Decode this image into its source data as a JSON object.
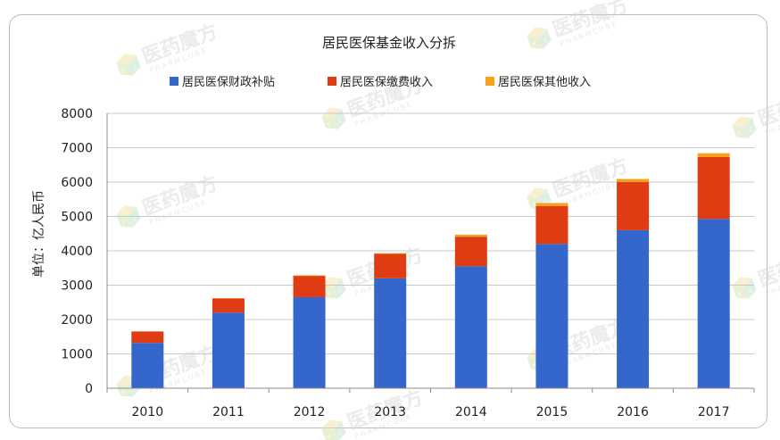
{
  "chart_data": {
    "type": "bar",
    "stacked": true,
    "title": "居民医保基金收入分拆",
    "ylabel": "单位：亿人民币",
    "xlabel": "",
    "ylim": [
      0,
      8000
    ],
    "yticks": [
      0,
      1000,
      2000,
      3000,
      4000,
      5000,
      6000,
      7000,
      8000
    ],
    "grid": true,
    "legend_position": "top",
    "categories": [
      "2010",
      "2011",
      "2012",
      "2013",
      "2014",
      "2015",
      "2016",
      "2017"
    ],
    "series": [
      {
        "name": "居民医保财政补贴",
        "color": "#3566cc",
        "values": [
          1320,
          2200,
          2650,
          3200,
          3550,
          4200,
          4600,
          4930
        ]
      },
      {
        "name": "居民医保缴费收入",
        "color": "#e03c14",
        "values": [
          330,
          410,
          620,
          710,
          860,
          1100,
          1400,
          1800
        ]
      },
      {
        "name": "居民医保其他收入",
        "color": "#f4a11d",
        "values": [
          5,
          10,
          15,
          20,
          60,
          90,
          90,
          110
        ]
      }
    ]
  },
  "watermark": {
    "text": "医药魔方",
    "subtext": "PHARMCUBE",
    "logo_letters": [
      "P",
      "C"
    ],
    "logo_colors": [
      "#cfe3a6",
      "#bfe0c8",
      "#f3e3a3"
    ]
  }
}
